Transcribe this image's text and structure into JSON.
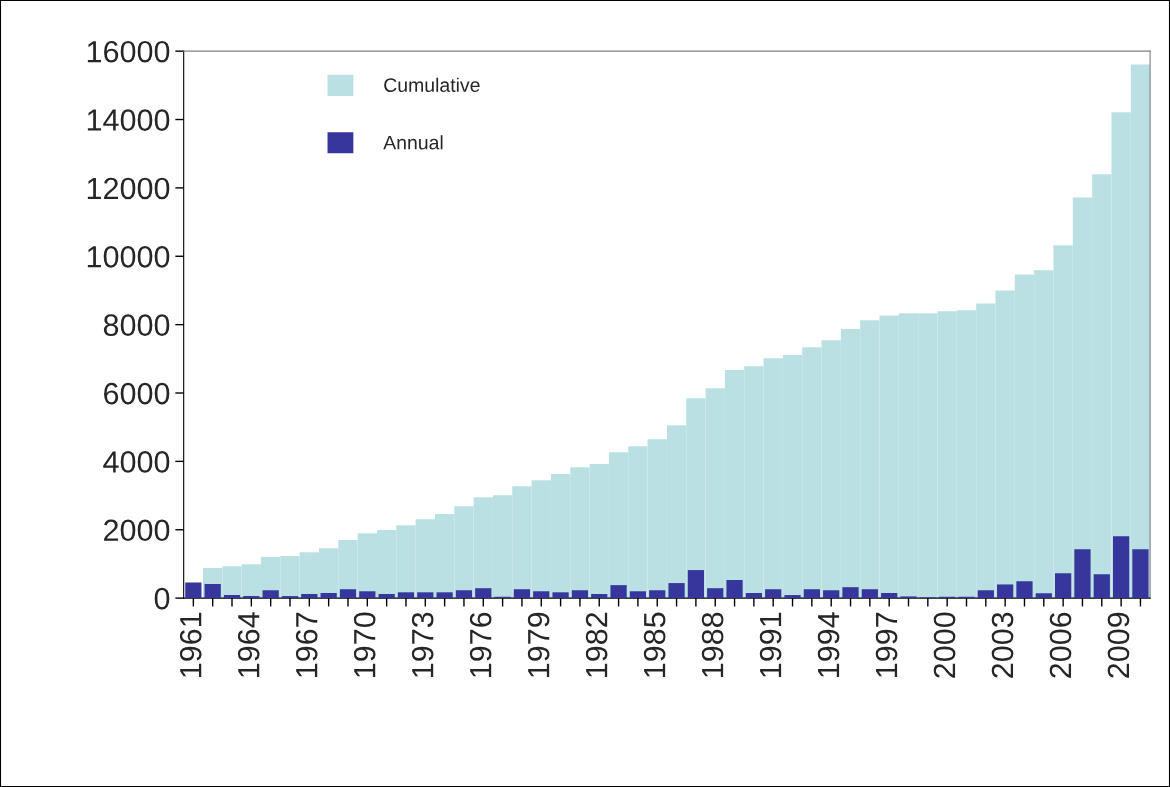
{
  "chart_data": {
    "type": "bar",
    "categories": [
      "1961",
      null,
      null,
      "1964",
      null,
      null,
      "1967",
      null,
      null,
      "1970",
      null,
      null,
      "1973",
      null,
      null,
      "1976",
      null,
      null,
      "1979",
      null,
      null,
      "1982",
      null,
      null,
      "1985",
      null,
      null,
      "1988",
      null,
      null,
      "1991",
      null,
      null,
      "1994",
      null,
      null,
      "1997",
      null,
      null,
      "2000",
      null,
      null,
      "2003",
      null,
      null,
      "2006",
      null,
      null,
      "2009",
      null
    ],
    "series": [
      {
        "name": "Cumulative",
        "color": "#bbe0e3",
        "values": [
          null,
          880,
          930,
          990,
          1200,
          1230,
          1340,
          1460,
          1700,
          1900,
          1990,
          2130,
          2310,
          2460,
          2690,
          2950,
          3010,
          3270,
          3450,
          3630,
          3830,
          3920,
          4270,
          4440,
          4650,
          5060,
          5850,
          6140,
          6670,
          6780,
          7020,
          7110,
          7340,
          7540,
          7870,
          8130,
          8270,
          8330,
          8330,
          8390,
          8420,
          8620,
          9000,
          9470,
          9590,
          10320,
          11720,
          12400,
          14210,
          15610
        ]
      },
      {
        "name": "Annual",
        "color": "#36369c",
        "values": [
          460,
          410,
          90,
          60,
          230,
          60,
          120,
          150,
          260,
          200,
          120,
          170,
          170,
          170,
          230,
          290,
          40,
          260,
          200,
          170,
          230,
          120,
          380,
          200,
          230,
          440,
          820,
          290,
          530,
          150,
          260,
          90,
          260,
          230,
          320,
          260,
          150,
          50,
          20,
          40,
          40,
          230,
          400,
          490,
          140,
          730,
          1430,
          700,
          1810,
          1430
        ]
      }
    ],
    "ylim": [
      0,
      16000
    ],
    "yticks": [
      0,
      2000,
      4000,
      6000,
      8000,
      10000,
      12000,
      14000,
      16000
    ],
    "legend": "top left",
    "grid": false
  }
}
